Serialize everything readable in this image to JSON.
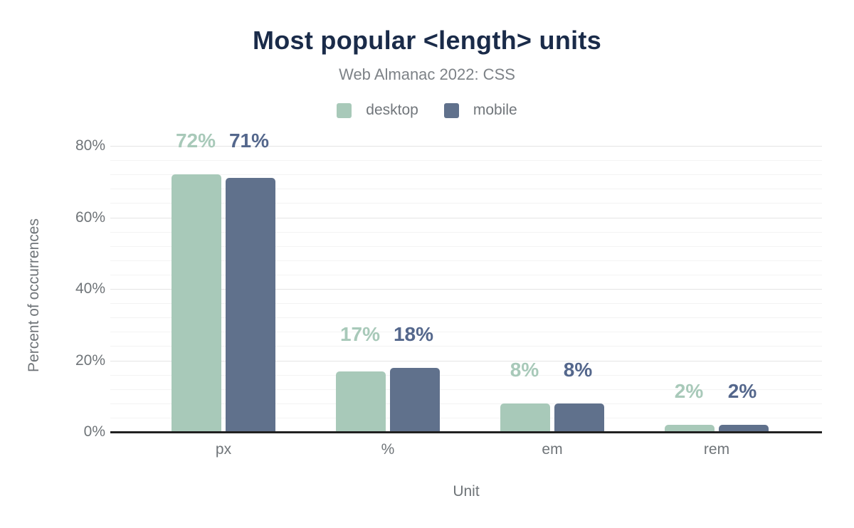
{
  "header": {
    "title": "Most popular <length> units",
    "subtitle": "Web Almanac 2022: CSS"
  },
  "axes": {
    "y_title": "Percent of occurrences",
    "x_title": "Unit",
    "y_tick_labels": [
      "0%",
      "20%",
      "40%",
      "60%",
      "80%"
    ]
  },
  "chart_data": {
    "type": "bar",
    "title": "Most popular <length> units",
    "subtitle": "Web Almanac 2022: CSS",
    "categories": [
      "px",
      "%",
      "em",
      "rem"
    ],
    "series": [
      {
        "name": "desktop",
        "values": [
          72,
          17,
          8,
          2
        ],
        "value_labels": [
          "72%",
          "17%",
          "8%",
          "2%"
        ],
        "color": "#a8c9b9",
        "label_color": "#a8c9b9"
      },
      {
        "name": "mobile",
        "values": [
          71,
          18,
          8,
          2
        ],
        "value_labels": [
          "71%",
          "18%",
          "8%",
          "2%"
        ],
        "color": "#60718c",
        "label_color": "#54678c"
      }
    ],
    "xlabel": "Unit",
    "ylabel": "Percent of occurrences",
    "ylim": [
      0,
      80
    ],
    "yticks": [
      0,
      20,
      40,
      60,
      80
    ],
    "minor_grid_step_percent": 4,
    "grid": true,
    "legend_position": "top",
    "baseline_color": "#212121",
    "grid_major_color": "#e4e4e4",
    "grid_minor_color": "#f3f3f3",
    "title_color": "#1a2b49",
    "subtitle_color": "#7d8287",
    "axis_text_color": "#6f7478"
  }
}
